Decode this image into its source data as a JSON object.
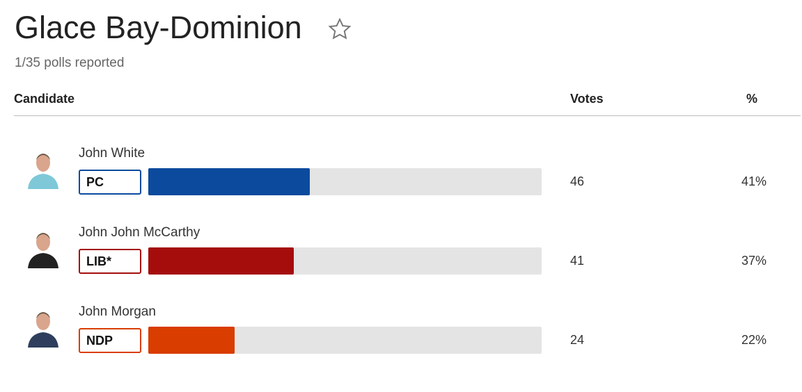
{
  "header": {
    "title": "Glace Bay-Dominion",
    "subtitle": "1/35 polls reported"
  },
  "table": {
    "columns": [
      "Candidate",
      "Votes",
      "%"
    ],
    "rows": [
      {
        "name": "John White",
        "party": "PC",
        "color": "#0c4a9e",
        "votes": 46,
        "percent": 41,
        "percent_label": "41%"
      },
      {
        "name": "John John McCarthy",
        "party": "LIB*",
        "color": "#a50d0d",
        "votes": 41,
        "percent": 37,
        "percent_label": "37%"
      },
      {
        "name": "John Morgan",
        "party": "NDP",
        "color": "#d93d00",
        "votes": 24,
        "percent": 22,
        "percent_label": "22%"
      }
    ]
  }
}
